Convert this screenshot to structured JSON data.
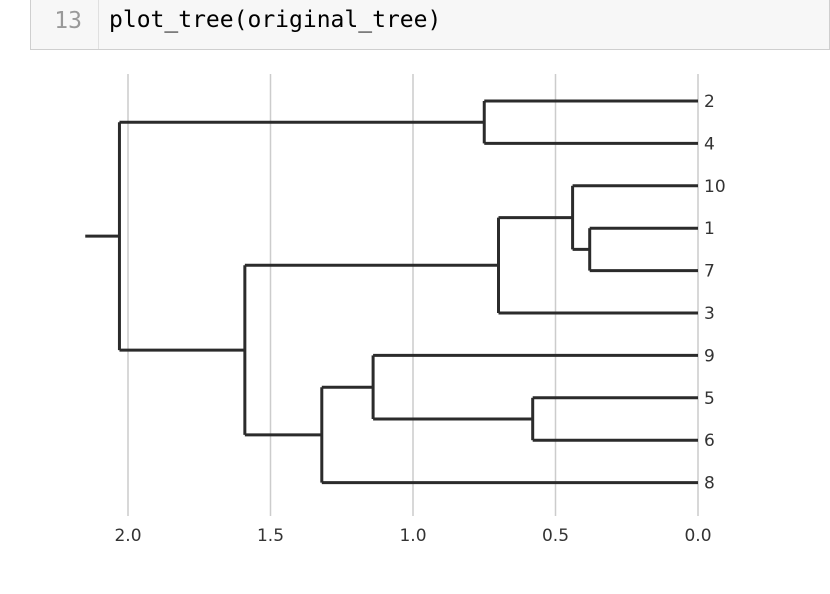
{
  "cell": {
    "line_number": "13",
    "code": "plot_tree(original_tree)"
  },
  "chart_data": {
    "type": "dendrogram",
    "orientation": "left",
    "xlim": [
      2.15,
      0.0
    ],
    "x_ticks": [
      2.0,
      1.5,
      1.0,
      0.5,
      0.0
    ],
    "x_tick_labels": [
      "2.0",
      "1.5",
      "1.0",
      "0.5",
      "0.0"
    ],
    "grid": "vertical",
    "leaves": [
      "2",
      "4",
      "10",
      "1",
      "7",
      "3",
      "9",
      "5",
      "6",
      "8"
    ],
    "merges": [
      {
        "children": [
          "2",
          "4"
        ],
        "height": 0.75
      },
      {
        "children": [
          "1",
          "7"
        ],
        "height": 0.38
      },
      {
        "children": [
          "10",
          "(1,7)"
        ],
        "height": 0.44
      },
      {
        "children": [
          "(10,1,7)",
          "3"
        ],
        "height": 0.7
      },
      {
        "children": [
          "5",
          "6"
        ],
        "height": 0.58
      },
      {
        "children": [
          "9",
          "(5,6)"
        ],
        "height": 1.14
      },
      {
        "children": [
          "(9,5,6)",
          "8"
        ],
        "height": 1.32
      },
      {
        "children": [
          "(10,1,7,3)",
          "(9,5,6,8)"
        ],
        "height": 1.59
      },
      {
        "children": [
          "(2,4)",
          "(10,1,7,3,9,5,6,8)"
        ],
        "height": 2.03
      }
    ],
    "root_stub": 2.15,
    "colors": {
      "branch": "#2b2b2b",
      "grid": "#cccccc",
      "tick_text": "#333333"
    }
  }
}
